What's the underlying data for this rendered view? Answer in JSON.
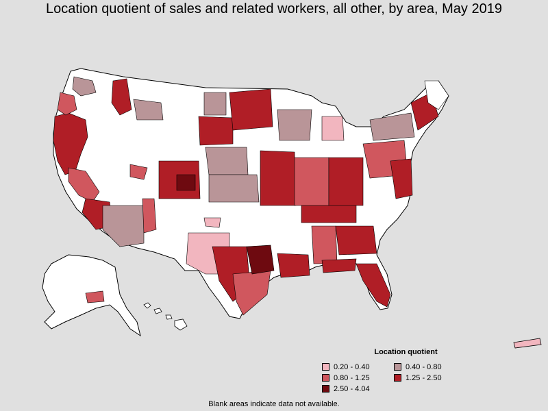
{
  "title": "Location quotient of sales and related workers, all other, by area, May 2019",
  "legend": {
    "title": "Location quotient",
    "items": [
      {
        "label": "0.20 - 0.40",
        "color": "#f2b6bf"
      },
      {
        "label": "0.40 - 0.80",
        "color": "#b99598"
      },
      {
        "label": "0.80 - 1.25",
        "color": "#d0575e"
      },
      {
        "label": "1.25 - 2.50",
        "color": "#b01e26"
      },
      {
        "label": "2.50 - 4.04",
        "color": "#6e0a10"
      }
    ]
  },
  "footnote": "Blank areas indicate data not available.",
  "colors": {
    "background": "#e0e0e0",
    "no_data": "#ffffff",
    "border": "#000000"
  }
}
